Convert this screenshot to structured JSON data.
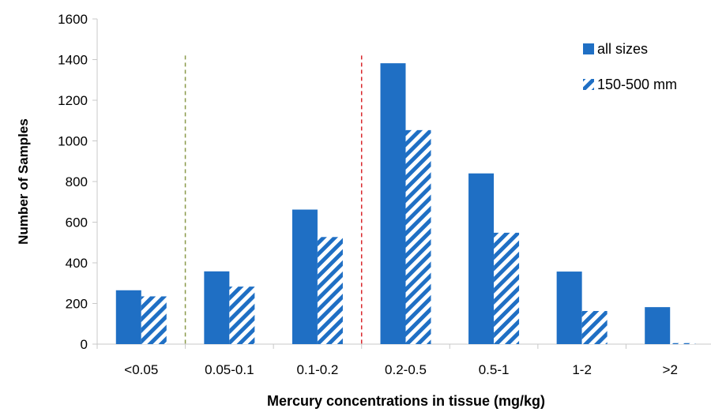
{
  "chart_data": {
    "type": "bar",
    "categories": [
      "<0.05",
      "0.05-0.1",
      "0.1-0.2",
      "0.2-0.5",
      "0.5-1",
      "1-2",
      ">2"
    ],
    "series": [
      {
        "name": "all sizes",
        "values": [
          265,
          358,
          662,
          1382,
          840,
          357,
          182
        ],
        "color": "#1f6fc4",
        "pattern": "solid"
      },
      {
        "name": "150-500 mm",
        "values": [
          235,
          283,
          527,
          1053,
          548,
          163,
          5
        ],
        "color": "#1f6fc4",
        "pattern": "diagonal-hatch"
      }
    ],
    "xlabel": "Mercury concentrations in tissue (mg/kg)",
    "ylabel": "Number of Samples",
    "ylim": [
      0,
      1600
    ],
    "yticks": [
      "0",
      "200",
      "400",
      "600",
      "800",
      "1000",
      "1200",
      "1400",
      "1600"
    ],
    "legend_position": "top-right",
    "grid": false,
    "reference_lines": [
      {
        "between_categories": [
          "<0.05",
          "0.05-0.1"
        ],
        "color": "#8a9a4a",
        "style": "dashed"
      },
      {
        "between_categories": [
          "0.1-0.2",
          "0.2-0.5"
        ],
        "color": "#d9262b",
        "style": "dashed"
      }
    ]
  }
}
